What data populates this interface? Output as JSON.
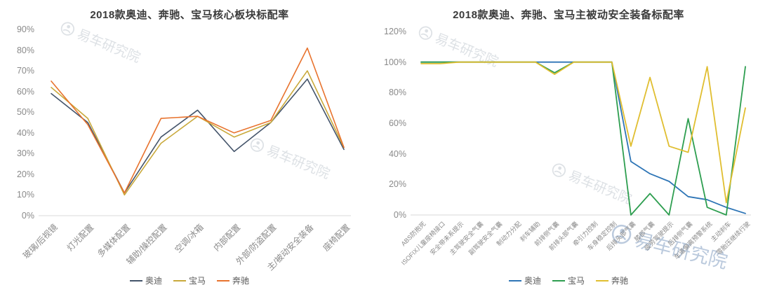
{
  "watermark": {
    "text": "易车研究院"
  },
  "chart_data": [
    {
      "type": "line",
      "title": "2018款奥迪、奔驰、宝马核心板块标配率",
      "categories": [
        "玻璃/后视镜",
        "灯光配置",
        "多媒体配置",
        "辅助/操控配置",
        "空调/冰箱",
        "内部配置",
        "外部/防盗配置",
        "主/被动安全装备",
        "座椅配置"
      ],
      "xlabel": "",
      "ylabel": "",
      "ylim": [
        0,
        90
      ],
      "yticks": [
        "0%",
        "10%",
        "20%",
        "30%",
        "40%",
        "50%",
        "60%",
        "70%",
        "80%",
        "90%"
      ],
      "grid": false,
      "legend_position": "bottom",
      "series": [
        {
          "name": "奥迪",
          "color": "#44546A",
          "values": [
            59,
            45,
            11,
            38,
            51,
            31,
            45,
            66,
            32
          ]
        },
        {
          "name": "宝马",
          "color": "#C9A93B",
          "values": [
            62,
            47,
            10,
            35,
            48,
            38,
            45,
            70,
            33
          ]
        },
        {
          "name": "奔驰",
          "color": "#E8732E",
          "values": [
            65,
            44,
            11,
            47,
            48,
            40,
            46,
            81,
            33
          ]
        }
      ]
    },
    {
      "type": "line",
      "title": "2018款奥迪、奔驰、宝马主被动安全装备标配率",
      "categories": [
        "ABS防抱死",
        "ISOFIX儿童座椅接口",
        "安全带未系提示",
        "主驾驶安全气囊",
        "副驾驶安全气囊",
        "制动力分配",
        "刹车辅助",
        "前排侧气囊",
        "前排头部气囊",
        "牵引力控制",
        "车身稳定控制",
        "后排头部气囊",
        "膝部气囊",
        "疲劳驾驶提示",
        "后排侧气囊",
        "车道偏离预警系统",
        "主动刹车",
        "零胎压继续行驶"
      ],
      "xlabel": "",
      "ylabel": "",
      "ylim": [
        0,
        120
      ],
      "yticks": [
        "0%",
        "20%",
        "40%",
        "60%",
        "80%",
        "100%",
        "120%"
      ],
      "grid": false,
      "legend_position": "bottom",
      "series": [
        {
          "name": "奥迪",
          "color": "#2E75B6",
          "values": [
            100,
            100,
            100,
            100,
            100,
            100,
            100,
            100,
            100,
            100,
            100,
            35,
            27,
            22,
            12,
            10,
            5,
            1
          ]
        },
        {
          "name": "宝马",
          "color": "#2E9E50",
          "values": [
            100,
            100,
            100,
            100,
            100,
            100,
            100,
            93,
            100,
            100,
            100,
            0,
            14,
            0,
            63,
            5,
            0,
            97
          ]
        },
        {
          "name": "奔驰",
          "color": "#E0BE30",
          "values": [
            99,
            99,
            100,
            100,
            100,
            100,
            100,
            92,
            100,
            100,
            100,
            45,
            90,
            45,
            41,
            97,
            8,
            70
          ]
        }
      ]
    }
  ]
}
